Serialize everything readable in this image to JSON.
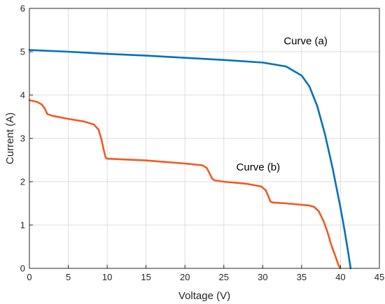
{
  "chart_data": {
    "type": "line",
    "xlabel": "Voltage (V)",
    "ylabel": "Current (A)",
    "xlim": [
      0,
      45
    ],
    "ylim": [
      0,
      6
    ],
    "xticks": [
      0,
      5,
      10,
      15,
      20,
      25,
      30,
      35,
      40,
      45
    ],
    "yticks": [
      0,
      1,
      2,
      3,
      4,
      5,
      6
    ],
    "grid": true,
    "series": [
      {
        "color": "#0072BD",
        "x": [
          0,
          5,
          10,
          15,
          20,
          25,
          30,
          33,
          35,
          36,
          37,
          38,
          39,
          40,
          40.5,
          41,
          41.3
        ],
        "y": [
          5.04,
          5.0,
          4.95,
          4.91,
          4.86,
          4.81,
          4.75,
          4.66,
          4.45,
          4.2,
          3.75,
          3.1,
          2.3,
          1.4,
          0.9,
          0.35,
          0
        ]
      },
      {
        "color": "#F05A23",
        "x": [
          0,
          1,
          1.6,
          2.0,
          2.3,
          3,
          5,
          7,
          8.3,
          8.9,
          9.3,
          9.6,
          9.8,
          10,
          15,
          20,
          22.2,
          22.8,
          23.2,
          23.5,
          23.8,
          25,
          28,
          29.8,
          30.4,
          30.8,
          31.0,
          31.3,
          33,
          36,
          36.6,
          37.2,
          37.8,
          38.3,
          38.8,
          39.3,
          39.8,
          40.0
        ],
        "y": [
          3.88,
          3.84,
          3.78,
          3.68,
          3.56,
          3.52,
          3.45,
          3.39,
          3.32,
          3.2,
          2.95,
          2.7,
          2.56,
          2.53,
          2.49,
          2.42,
          2.38,
          2.32,
          2.18,
          2.07,
          2.03,
          2.0,
          1.95,
          1.89,
          1.8,
          1.63,
          1.54,
          1.52,
          1.5,
          1.45,
          1.42,
          1.32,
          1.1,
          0.85,
          0.55,
          0.3,
          0.05,
          0
        ]
      }
    ],
    "annotations": [
      {
        "text": "Curve (a)",
        "x": 32.7,
        "y": 5.17
      },
      {
        "text": "Curve (b)",
        "x": 26.6,
        "y": 2.26
      }
    ]
  }
}
